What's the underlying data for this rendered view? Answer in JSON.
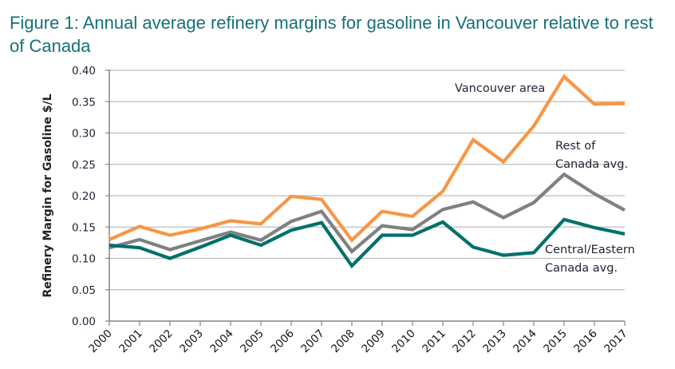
{
  "title": "Figure 1: Annual average refinery margins for gasoline in Vancouver relative to rest of Canada",
  "chart_data": {
    "type": "line",
    "title": "Figure 1: Annual average refinery margins for gasoline in Vancouver relative to rest of Canada",
    "xlabel": "",
    "ylabel": "Refinery Margin for Gasoline $/L",
    "ylim": [
      0,
      0.4
    ],
    "yticks": [
      "0.00",
      "0.05",
      "0.10",
      "0.15",
      "0.20",
      "0.25",
      "0.30",
      "0.35",
      "0.40"
    ],
    "grid": true,
    "x": [
      "2000",
      "2001",
      "2002",
      "2003",
      "2004",
      "2005",
      "2006",
      "2007",
      "2008",
      "2009",
      "2010",
      "2011",
      "2012",
      "2013",
      "2014",
      "2015",
      "2016",
      "2017"
    ],
    "series": [
      {
        "name": "Vancouver area",
        "label_lines": [
          "Vancouver area"
        ],
        "color": "#F79646",
        "values": [
          0.13,
          0.151,
          0.137,
          0.147,
          0.16,
          0.155,
          0.199,
          0.194,
          0.129,
          0.175,
          0.167,
          0.207,
          0.289,
          0.254,
          0.311,
          0.39,
          0.346,
          0.347
        ]
      },
      {
        "name": "Rest of Canada avg.",
        "label_lines": [
          "Rest of",
          "Canada avg."
        ],
        "color": "#808080",
        "values": [
          0.117,
          0.13,
          0.114,
          0.128,
          0.142,
          0.129,
          0.159,
          0.175,
          0.111,
          0.152,
          0.146,
          0.178,
          0.19,
          0.165,
          0.189,
          0.234,
          0.203,
          0.177
        ]
      },
      {
        "name": "Central/Eastern Canada avg.",
        "label_lines": [
          "Central/Eastern",
          "Canada avg."
        ],
        "color": "#00706B",
        "values": [
          0.121,
          0.117,
          0.1,
          0.118,
          0.137,
          0.121,
          0.145,
          0.157,
          0.088,
          0.137,
          0.137,
          0.158,
          0.118,
          0.105,
          0.109,
          0.162,
          0.149,
          0.139
        ]
      }
    ],
    "legend": "inline annotations"
  }
}
